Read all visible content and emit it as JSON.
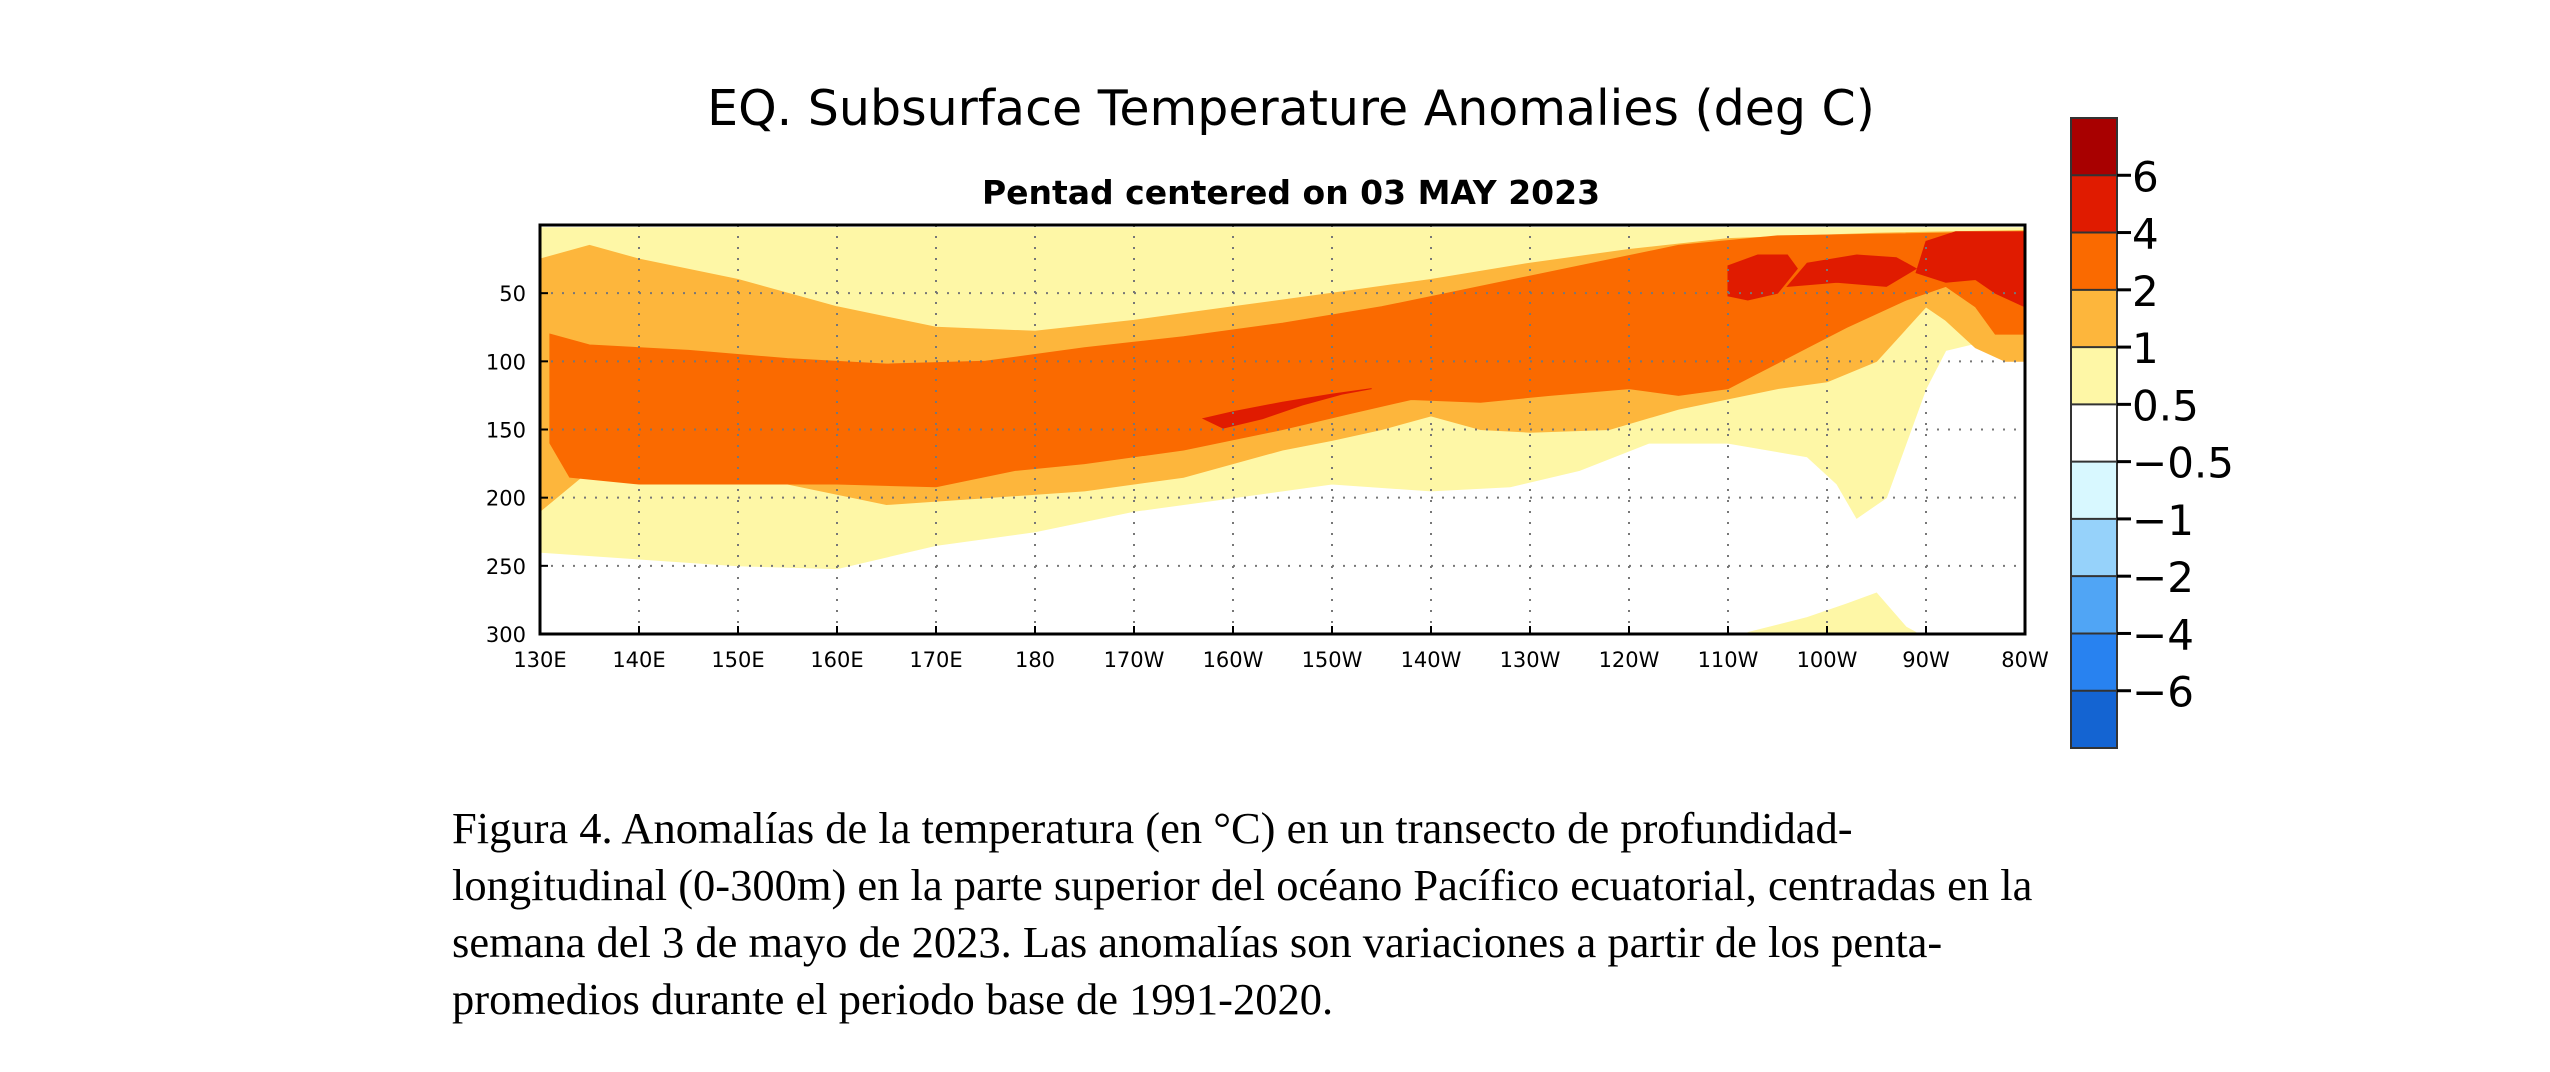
{
  "chart_data": {
    "type": "heatmap",
    "title": "EQ. Subsurface Temperature Anomalies (deg C)",
    "subtitle": "Pentad centered on 03 MAY 2023",
    "x_axis": {
      "ticks": [
        "130E",
        "140E",
        "150E",
        "160E",
        "170E",
        "180",
        "170W",
        "160W",
        "150W",
        "140W",
        "130W",
        "120W",
        "110W",
        "100W",
        "90W",
        "80W"
      ],
      "range_deg_east": [
        130,
        280
      ]
    },
    "y_axis": {
      "ticks": [
        "50",
        "100",
        "150",
        "200",
        "250",
        "300"
      ],
      "range_m": [
        0,
        300
      ],
      "inverted": true
    },
    "grid": true,
    "colorbar": {
      "labels": [
        "6",
        "4",
        "2",
        "1",
        "0.5",
        "−0.5",
        "−1",
        "−2",
        "−4",
        "−6"
      ],
      "colors": [
        "#a80000",
        "#e01b00",
        "#fa6a00",
        "#fdb63c",
        "#fef7a6",
        "#ffffff",
        "#d8f8ff",
        "#96d2fa",
        "#50a5f5",
        "#2882f0",
        "#1464d2"
      ]
    },
    "anomaly_regions": [
      {
        "level": 0.5,
        "color": "#fef7a6",
        "points": [
          [
            130,
            2
          ],
          [
            280,
            2
          ],
          [
            280,
            75
          ],
          [
            276,
            85
          ],
          [
            272,
            92
          ],
          [
            270,
            120
          ],
          [
            268,
            160
          ],
          [
            266,
            200
          ],
          [
            263,
            215
          ],
          [
            261,
            190
          ],
          [
            258,
            170
          ],
          [
            250,
            160
          ],
          [
            242,
            160
          ],
          [
            235,
            180
          ],
          [
            228,
            192
          ],
          [
            220,
            195
          ],
          [
            210,
            190
          ],
          [
            200,
            200
          ],
          [
            190,
            210
          ],
          [
            180,
            225
          ],
          [
            170,
            235
          ],
          [
            160,
            252
          ],
          [
            150,
            250
          ],
          [
            140,
            245
          ],
          [
            130,
            240
          ]
        ]
      },
      {
        "level": 0.5,
        "color": "#fef7a6",
        "points": [
          [
            252,
            299
          ],
          [
            258,
            288
          ],
          [
            262,
            278
          ],
          [
            265,
            270
          ],
          [
            268,
            295
          ],
          [
            269,
            299
          ]
        ]
      },
      {
        "level": 1,
        "color": "#fdb63c",
        "points": [
          [
            130,
            25
          ],
          [
            135,
            15
          ],
          [
            140,
            25
          ],
          [
            150,
            40
          ],
          [
            160,
            60
          ],
          [
            170,
            75
          ],
          [
            180,
            78
          ],
          [
            190,
            70
          ],
          [
            200,
            60
          ],
          [
            210,
            50
          ],
          [
            220,
            40
          ],
          [
            230,
            28
          ],
          [
            240,
            18
          ],
          [
            250,
            10
          ],
          [
            265,
            6
          ],
          [
            280,
            4
          ],
          [
            280,
            100
          ],
          [
            278,
            100
          ],
          [
            275,
            90
          ],
          [
            272,
            70
          ],
          [
            270,
            60
          ],
          [
            265,
            100
          ],
          [
            260,
            115
          ],
          [
            255,
            120
          ],
          [
            245,
            135
          ],
          [
            238,
            150
          ],
          [
            230,
            152
          ],
          [
            225,
            150
          ],
          [
            220,
            140
          ],
          [
            215,
            150
          ],
          [
            210,
            158
          ],
          [
            205,
            165
          ],
          [
            195,
            185
          ],
          [
            185,
            195
          ],
          [
            175,
            200
          ],
          [
            165,
            205
          ],
          [
            155,
            190
          ],
          [
            145,
            185
          ],
          [
            135,
            180
          ],
          [
            130,
            210
          ]
        ]
      },
      {
        "level": 2,
        "color": "#fa6a00",
        "points": [
          [
            131,
            80
          ],
          [
            135,
            88
          ],
          [
            145,
            92
          ],
          [
            155,
            98
          ],
          [
            165,
            102
          ],
          [
            175,
            100
          ],
          [
            185,
            90
          ],
          [
            195,
            82
          ],
          [
            205,
            72
          ],
          [
            215,
            60
          ],
          [
            225,
            45
          ],
          [
            235,
            30
          ],
          [
            245,
            15
          ],
          [
            255,
            8
          ],
          [
            280,
            5
          ],
          [
            280,
            80
          ],
          [
            277,
            80
          ],
          [
            275,
            60
          ],
          [
            272,
            45
          ],
          [
            268,
            55
          ],
          [
            262,
            75
          ],
          [
            258,
            90
          ],
          [
            250,
            120
          ],
          [
            245,
            125
          ],
          [
            240,
            120
          ],
          [
            232,
            125
          ],
          [
            225,
            130
          ],
          [
            218,
            128
          ],
          [
            212,
            138
          ],
          [
            205,
            150
          ],
          [
            195,
            165
          ],
          [
            185,
            175
          ],
          [
            178,
            180
          ],
          [
            170,
            192
          ],
          [
            160,
            190
          ],
          [
            150,
            190
          ],
          [
            140,
            190
          ],
          [
            133,
            185
          ],
          [
            131,
            160
          ]
        ]
      },
      {
        "level": 4,
        "color": "#e01b00",
        "points": [
          [
            197,
            142
          ],
          [
            200,
            137
          ],
          [
            205,
            130
          ],
          [
            210,
            124
          ],
          [
            214,
            120
          ],
          [
            211,
            124
          ],
          [
            207,
            132
          ],
          [
            203,
            142
          ],
          [
            199,
            149
          ]
        ]
      },
      {
        "level": 4,
        "color": "#e01b00",
        "points": [
          [
            250,
            52
          ],
          [
            250,
            30
          ],
          [
            253,
            22
          ],
          [
            256,
            22
          ],
          [
            257,
            32
          ],
          [
            255,
            50
          ],
          [
            252,
            55
          ]
        ]
      },
      {
        "level": 4,
        "color": "#e01b00",
        "points": [
          [
            256,
            45
          ],
          [
            258,
            28
          ],
          [
            263,
            22
          ],
          [
            267,
            24
          ],
          [
            269,
            32
          ],
          [
            266,
            45
          ],
          [
            261,
            42
          ]
        ]
      },
      {
        "level": 4,
        "color": "#e01b00",
        "points": [
          [
            269,
            35
          ],
          [
            270,
            12
          ],
          [
            273,
            5
          ],
          [
            280,
            5
          ],
          [
            280,
            60
          ],
          [
            277,
            50
          ],
          [
            275,
            40
          ],
          [
            272,
            42
          ]
        ]
      }
    ]
  },
  "caption": {
    "line1": "Figura 4. Anomalías de la temperatura (en °C) en un transecto de profundidad-",
    "line2": "longitudinal (0-300m) en la parte superior del océano Pacífico ecuatorial, centradas en la",
    "line3": "semana del 3 de mayo de 2023. Las anomalías son variaciones a partir de los penta-",
    "line4": "promedios durante el periodo base de 1991-2020."
  }
}
